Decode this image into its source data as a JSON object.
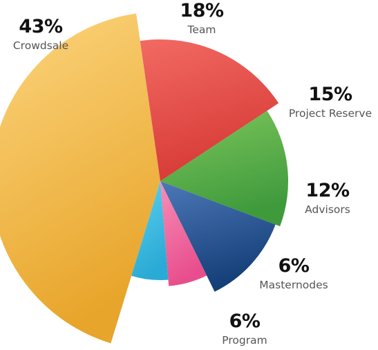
{
  "chart_data": {
    "type": "pie",
    "slices": [
      {
        "label": "Crowdsale",
        "value": 43,
        "value_label": "43%",
        "color_light": "#fcd57e",
        "color_dark": "#e8a52b"
      },
      {
        "label": "Team",
        "value": 18,
        "value_label": "18%",
        "color_light": "#f26a63",
        "color_dark": "#d73a36"
      },
      {
        "label": "Project Reserve",
        "value": 15,
        "value_label": "15%",
        "color_light": "#7dc65c",
        "color_dark": "#3f9a3c"
      },
      {
        "label": "Advisors",
        "value": 12,
        "value_label": "12%",
        "color_light": "#4d78b8",
        "color_dark": "#143f78"
      },
      {
        "label": "Masternodes",
        "value": 6,
        "value_label": "6%",
        "color_light": "#f78fb7",
        "color_dark": "#e84e8d"
      },
      {
        "label": "Program",
        "value": 6,
        "value_label": "6%",
        "color_light": "#5fd1ee",
        "color_dark": "#2aaad6"
      }
    ]
  }
}
